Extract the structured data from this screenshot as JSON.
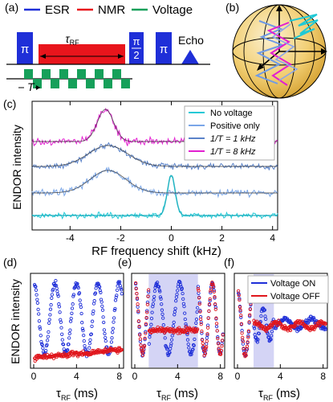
{
  "panels": {
    "a": "(a)",
    "b": "(b)",
    "c": "(c)",
    "d": "(d)",
    "e": "(e)",
    "f": "(f)"
  },
  "sequence": {
    "legend": [
      {
        "label": "ESR",
        "color": "#1f2fd8"
      },
      {
        "label": "NMR",
        "color": "#e8151c"
      },
      {
        "label": "Voltage",
        "color": "#16a05a"
      }
    ],
    "pi": "π",
    "pi_half_num": "π",
    "pi_half_den": "2",
    "tau_rf": "τ",
    "tau_rf_sub": "RF",
    "echo": "Echo",
    "period": "T",
    "voltage_pulses": 6
  },
  "colors": {
    "esr": "#1f2fd8",
    "nmr": "#e8151c",
    "voltage": "#16a05a",
    "no_voltage": "#1ec9d6",
    "positive_only": "#7aa6e8",
    "one_khz": "#5b83c9",
    "eight_khz": "#e21fd0",
    "voltage_on": "#1f2fd8",
    "voltage_off": "#e0161c",
    "shade": "#c9c9f2"
  },
  "chart_data": [
    {
      "panel": "c",
      "type": "line",
      "xlabel": "RF frequency shift (kHz)",
      "ylabel": "ENDOR intensity",
      "xlim": [
        -5.5,
        4.2
      ],
      "xticks": [
        "-4",
        "-2",
        "0",
        "2",
        "4"
      ],
      "legend_position": "top-right",
      "series": [
        {
          "name": "No voltage",
          "color": "#1ec9d6",
          "peak_center": 0.0,
          "peak_width": 0.22,
          "peak_height": 0.6
        },
        {
          "name": "Positive only",
          "color": "#7aa6e8",
          "peak_center": -2.5,
          "peak_width": 1.0,
          "peak_height": 0.25
        },
        {
          "name": "1/T = 1 kHz",
          "color": "#5b83c9",
          "peak_center": -2.5,
          "peak_width": 1.1,
          "peak_height": 0.28
        },
        {
          "name": "1/T = 8 kHz",
          "color": "#e21fd0",
          "peak_center": -2.6,
          "peak_width": 0.45,
          "peak_height": 0.35
        }
      ]
    },
    {
      "panel": "d",
      "type": "scatter",
      "xlabel": "τ",
      "xlabel_sub": "RF",
      "xlabel_unit": "(ms)",
      "ylabel": "ENDOR intensity",
      "xlim": [
        -0.3,
        8.4
      ],
      "xticks": [
        "0",
        "4",
        "8"
      ],
      "series": [
        {
          "name": "Voltage ON",
          "color": "#1f2fd8",
          "oscillation_period_ms": 2.0,
          "decay": 0.0
        },
        {
          "name": "Voltage OFF",
          "color": "#e0161c",
          "oscillation_period_ms": 0,
          "decay": 0.0
        }
      ]
    },
    {
      "panel": "e",
      "type": "scatter",
      "xlabel": "τ",
      "xlabel_sub": "RF",
      "xlabel_unit": "(ms)",
      "xlim": [
        -0.3,
        8.4
      ],
      "xticks": [
        "0",
        "4",
        "8"
      ],
      "shaded_region_ms": [
        1.3,
        5.9
      ],
      "series": [
        {
          "name": "Voltage ON",
          "color": "#1f2fd8",
          "oscillation_period_ms": 1.45
        },
        {
          "name": "Voltage OFF",
          "color": "#e0161c",
          "oscillation_period_ms": 1.45
        }
      ]
    },
    {
      "panel": "f",
      "type": "scatter",
      "xlabel": "τ",
      "xlabel_sub": "RF",
      "xlabel_unit": "(ms)",
      "xlim": [
        -0.3,
        8.4
      ],
      "xticks": [
        "0",
        "4",
        "8"
      ],
      "shaded_region_ms": [
        1.5,
        3.4
      ],
      "legend_position": "top-right",
      "series": [
        {
          "name": "Voltage ON",
          "color": "#1f2fd8",
          "oscillation_period_ms": 1.45
        },
        {
          "name": "Voltage OFF",
          "color": "#e0161c",
          "oscillation_period_ms": 1.45
        }
      ]
    }
  ]
}
